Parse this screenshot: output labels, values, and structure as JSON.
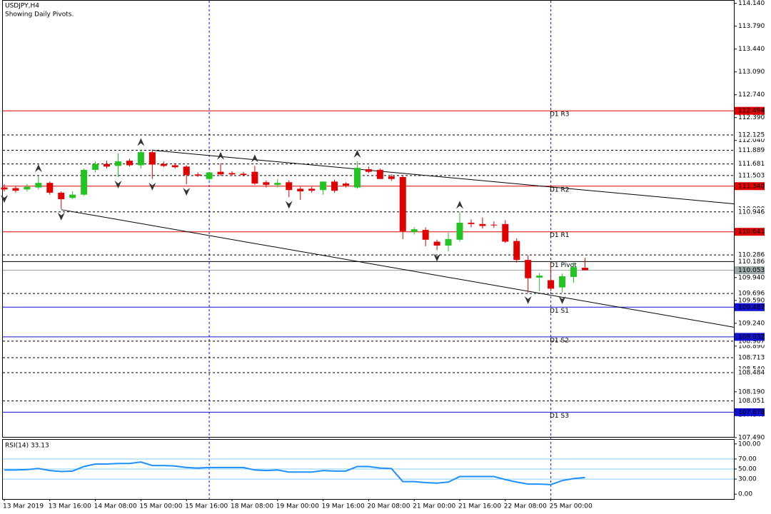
{
  "chart_data": {
    "type": "candlestick",
    "title": "USDJPY,H4",
    "subtitle": "Showing Daily Pivots.",
    "categories": [
      "13 Mar 2019",
      null,
      null,
      null,
      "13 Mar 16:00",
      null,
      null,
      null,
      "14 Mar 08:00",
      null,
      null,
      null,
      "15 Mar 00:00",
      null,
      null,
      null,
      "15 Mar 16:00",
      null,
      null,
      null,
      "18 Mar 08:00",
      null,
      null,
      null,
      "19 Mar 00:00",
      null,
      null,
      null,
      "19 Mar 16:00",
      null,
      null,
      null,
      "20 Mar 08:00",
      null,
      null,
      null,
      "21 Mar 00:00",
      null,
      null,
      null,
      "21 Mar 16:00",
      null,
      null,
      null,
      "22 Mar 08:00",
      null,
      null,
      null,
      "25 Mar 00:00",
      null,
      null,
      null
    ],
    "open": [
      111.32,
      111.31,
      111.29,
      111.32,
      111.39,
      111.24,
      111.16,
      111.21,
      111.59,
      111.68,
      111.65,
      111.73,
      111.66,
      111.86,
      111.68,
      111.66,
      111.64,
      111.52,
      111.45,
      111.56,
      111.54,
      111.53,
      111.56,
      111.4,
      111.36,
      111.4,
      111.3,
      111.3,
      111.28,
      111.41,
      111.38,
      111.32,
      111.6,
      111.59,
      111.49,
      111.48,
      110.64,
      110.67,
      110.49,
      110.43,
      110.52,
      110.78,
      110.76,
      110.75,
      110.76,
      110.5,
      110.21,
      109.94,
      109.9,
      109.79,
      109.95,
      110.09
    ],
    "high": [
      111.37,
      111.34,
      111.37,
      111.5,
      111.41,
      111.26,
      111.26,
      111.61,
      111.72,
      111.73,
      111.84,
      111.76,
      111.9,
      111.9,
      111.72,
      111.69,
      111.66,
      111.55,
      111.55,
      111.69,
      111.57,
      111.56,
      111.65,
      111.43,
      111.45,
      111.43,
      111.33,
      111.33,
      111.41,
      111.44,
      111.4,
      111.72,
      111.64,
      111.61,
      111.52,
      111.51,
      110.71,
      110.71,
      110.52,
      110.63,
      110.94,
      110.83,
      110.86,
      110.8,
      110.82,
      110.54,
      110.28,
      110.01,
      110.17,
      110.0,
      110.17,
      110.24
    ],
    "low": [
      111.26,
      111.24,
      111.26,
      111.29,
      111.21,
      110.99,
      111.14,
      111.19,
      111.55,
      111.61,
      111.48,
      111.64,
      111.61,
      111.45,
      111.63,
      111.61,
      111.37,
      111.48,
      111.43,
      111.5,
      111.5,
      111.49,
      111.36,
      111.32,
      111.32,
      111.17,
      111.13,
      111.24,
      111.21,
      111.24,
      111.32,
      111.3,
      111.54,
      111.45,
      111.42,
      110.53,
      110.6,
      110.42,
      110.36,
      110.34,
      110.49,
      110.71,
      110.69,
      110.7,
      110.47,
      110.17,
      109.71,
      109.73,
      109.73,
      109.71,
      109.86,
      110.05
    ],
    "close": [
      111.29,
      111.27,
      111.33,
      111.39,
      111.24,
      111.14,
      111.21,
      111.59,
      111.68,
      111.64,
      111.72,
      111.66,
      111.86,
      111.67,
      111.65,
      111.63,
      111.51,
      111.5,
      111.55,
      111.52,
      111.52,
      111.51,
      111.38,
      111.36,
      111.39,
      111.28,
      111.26,
      111.27,
      111.41,
      111.27,
      111.35,
      111.62,
      111.56,
      111.45,
      111.45,
      110.65,
      110.68,
      110.52,
      110.43,
      110.53,
      110.78,
      110.76,
      110.73,
      110.74,
      110.49,
      110.21,
      109.93,
      109.97,
      109.77,
      109.96,
      110.1,
      110.053
    ],
    "up_color": "#22c422",
    "down_color": "#e00000",
    "ylim": [
      107.5,
      114.18
    ],
    "yticks": [
      {
        "value": 114.14,
        "label": "114.140"
      },
      {
        "value": 113.79,
        "label": "113.790"
      },
      {
        "value": 113.44,
        "label": "113.440"
      },
      {
        "value": 113.09,
        "label": "113.090"
      },
      {
        "value": 112.74,
        "label": "112.740"
      },
      {
        "value": 112.39,
        "label": "112.390"
      },
      {
        "value": 112.04,
        "label": "112.040"
      },
      {
        "value": 111.69,
        "label": "111.690"
      },
      {
        "value": 111.34,
        "label": "111.340"
      },
      {
        "value": 110.99,
        "label": "110.990"
      },
      {
        "value": 110.64,
        "label": "110.640"
      },
      {
        "value": 110.29,
        "label": "110.290"
      },
      {
        "value": 109.94,
        "label": "109.940"
      },
      {
        "value": 109.59,
        "label": "109.590"
      },
      {
        "value": 109.24,
        "label": "109.240"
      },
      {
        "value": 108.89,
        "label": "108.890"
      },
      {
        "value": 108.54,
        "label": "108.540"
      },
      {
        "value": 108.19,
        "label": "108.190"
      },
      {
        "value": 107.84,
        "label": "107.840"
      },
      {
        "value": 107.49,
        "label": "107.490"
      }
    ],
    "levels": [
      112.125,
      111.889,
      111.681,
      111.503,
      110.946,
      110.286,
      109.696,
      108.967,
      108.713,
      108.484,
      108.051
    ],
    "pivots": [
      {
        "name": "D1 R3",
        "value": 112.494,
        "color": "#e00000"
      },
      {
        "name": "D1 R2",
        "value": 111.34,
        "label": "111.340",
        "color": "#e00000"
      },
      {
        "name": "D1 R1",
        "value": 110.641,
        "color": "#e00000"
      },
      {
        "name": "D1 Pivot",
        "value": 110.186,
        "color": "#000000"
      },
      {
        "name": "D1 S1",
        "value": 109.487,
        "color": "#1010d0"
      },
      {
        "name": "D1 S2",
        "value": 109.032,
        "label": "109.032",
        "color": "#1010d0"
      },
      {
        "name": "D1 S3",
        "value": 107.878,
        "color": "#1010d0"
      }
    ],
    "current_price": 110.053,
    "separators": [
      18,
      48
    ],
    "trendlines": [
      {
        "from": [
          13,
          111.89
        ],
        "to": [
          64.1,
          111.07
        ]
      },
      {
        "from": [
          5,
          110.98
        ],
        "to": [
          64.1,
          109.18
        ]
      }
    ],
    "fractals_up": [
      3,
      12,
      19,
      22,
      31,
      40
    ],
    "fractals_down": [
      0,
      5,
      10,
      13,
      16,
      25,
      38,
      46,
      49
    ],
    "rsi": {
      "label": "RSI(14) 33.13",
      "values": [
        48,
        48,
        49,
        51,
        47,
        45,
        46,
        55,
        60,
        60,
        61,
        61,
        64,
        57,
        57,
        56,
        53,
        52,
        53,
        53,
        53,
        53,
        48,
        47,
        48,
        44,
        44,
        44,
        47,
        46,
        46,
        55,
        55,
        52,
        51,
        25,
        25,
        23,
        22,
        24,
        35,
        35,
        35,
        35,
        29,
        24,
        20,
        20,
        19,
        27,
        31,
        33.13
      ],
      "color": "#1e90ff",
      "level_color": "#87cefa",
      "levels": [
        70,
        50,
        30
      ],
      "ylim": [
        -9.7,
        108.3
      ],
      "yticks": [
        {
          "value": 100,
          "label": "100.00"
        },
        {
          "value": 70,
          "label": "70.00"
        },
        {
          "value": 50,
          "label": "50.00"
        },
        {
          "value": 30,
          "label": "30.00"
        },
        {
          "value": 0,
          "label": "0.00"
        }
      ]
    }
  }
}
